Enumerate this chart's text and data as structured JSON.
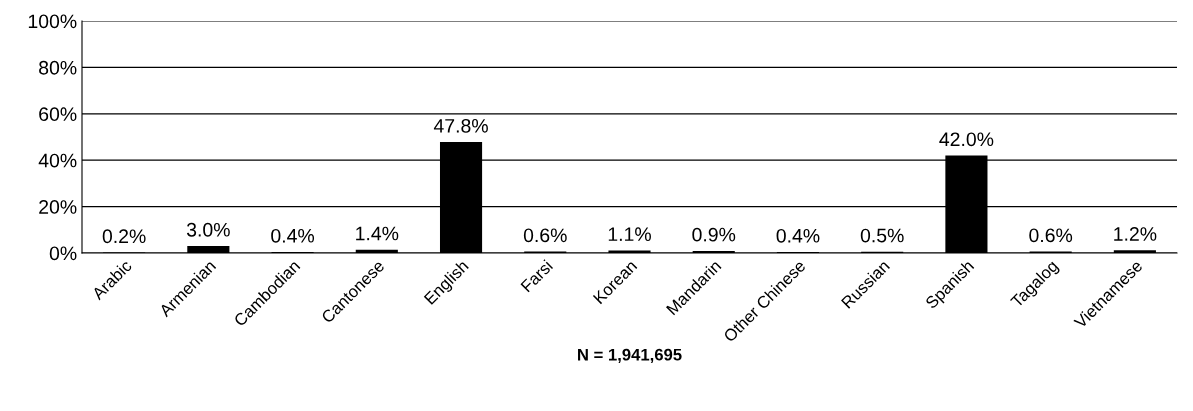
{
  "chart_data": {
    "type": "bar",
    "xlabel": "N = 1,941,695",
    "categories": [
      "Arabic",
      "Armenian",
      "Cambodian",
      "Cantonese",
      "English",
      "Farsi",
      "Korean",
      "Mandarin",
      "Other Chinese",
      "Russian",
      "Spanish",
      "Tagalog",
      "Vietnamese"
    ],
    "values": [
      0.2,
      3.0,
      0.4,
      1.4,
      47.8,
      0.6,
      1.1,
      0.9,
      0.4,
      0.5,
      42.0,
      0.6,
      1.2
    ],
    "value_labels": [
      "0.2%",
      "3.0%",
      "0.4%",
      "1.4%",
      "47.8%",
      "0.6%",
      "1.1%",
      "0.9%",
      "0.4%",
      "0.5%",
      "42.0%",
      "0.6%",
      "1.2%"
    ],
    "color": "#000000",
    "ylim": [
      0,
      100
    ],
    "yticks": [
      {
        "value": 0,
        "label": "0%"
      },
      {
        "value": 20,
        "label": "20%"
      },
      {
        "value": 40,
        "label": "40%"
      },
      {
        "value": 60,
        "label": "60%"
      },
      {
        "value": 80,
        "label": "80%"
      },
      {
        "value": 100,
        "label": "100%"
      }
    ],
    "grid": "y",
    "legend": false
  }
}
